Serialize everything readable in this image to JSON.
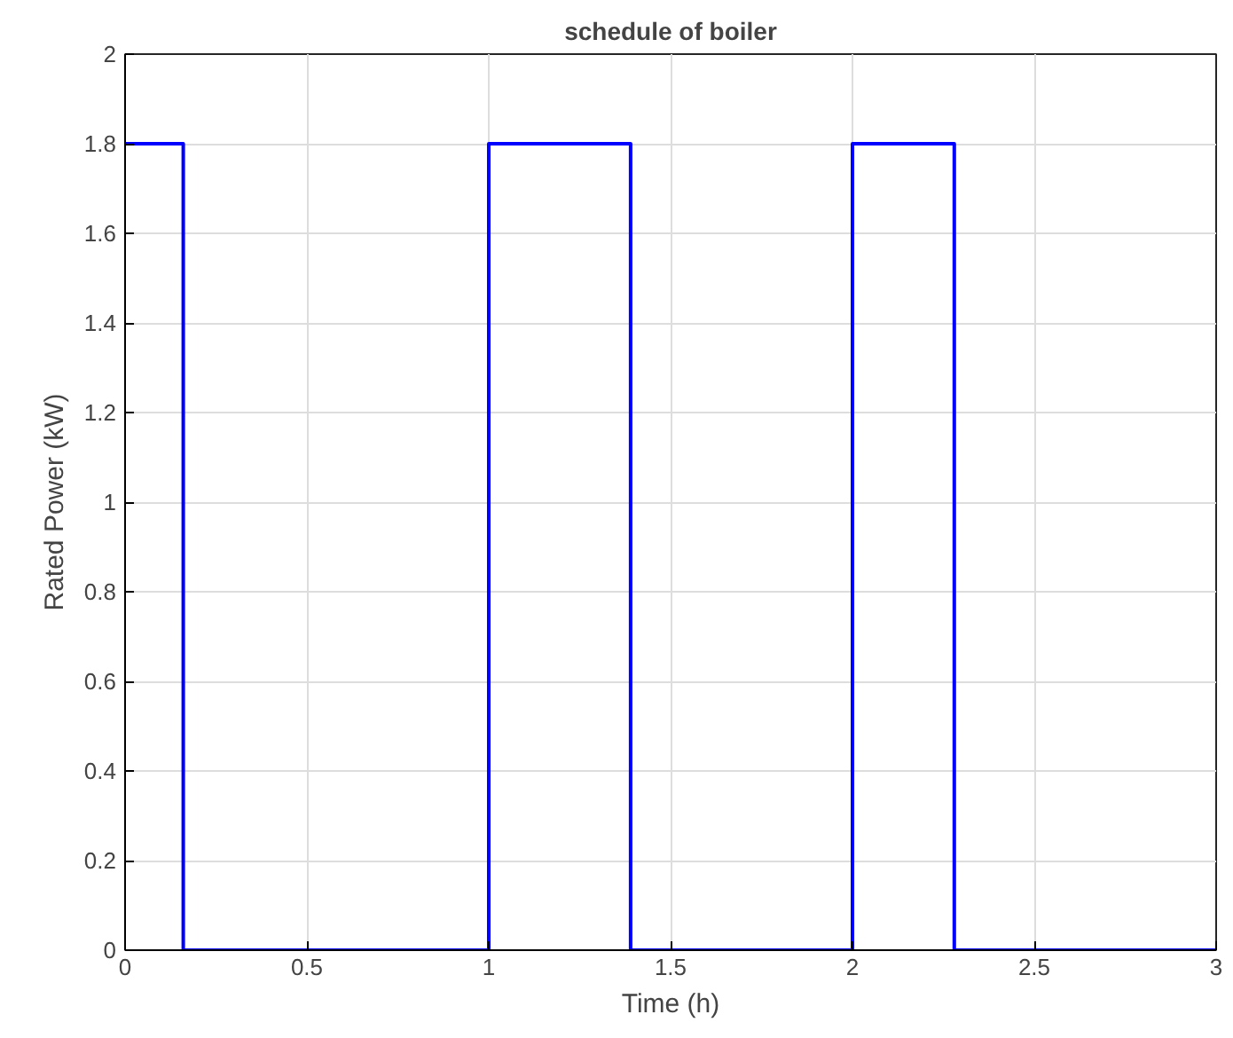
{
  "chart_data": {
    "type": "step",
    "title": "schedule of boiler",
    "xlabel": "Time (h)",
    "ylabel": "Rated Power (kW)",
    "x": [
      0,
      0.16,
      1,
      1.39,
      2,
      2.28,
      3
    ],
    "series": [
      {
        "color": "#0000ff",
        "values": [
          1.8,
          0,
          1.8,
          0,
          1.8,
          0,
          0
        ]
      }
    ],
    "xlim": [
      0,
      3
    ],
    "ylim": [
      0,
      2
    ],
    "xticks": [
      0,
      0.5,
      1,
      1.5,
      2,
      2.5,
      3
    ],
    "yticks": [
      0,
      0.2,
      0.4,
      0.6,
      0.8,
      1,
      1.2,
      1.4,
      1.6,
      1.8,
      2
    ],
    "grid": true
  }
}
